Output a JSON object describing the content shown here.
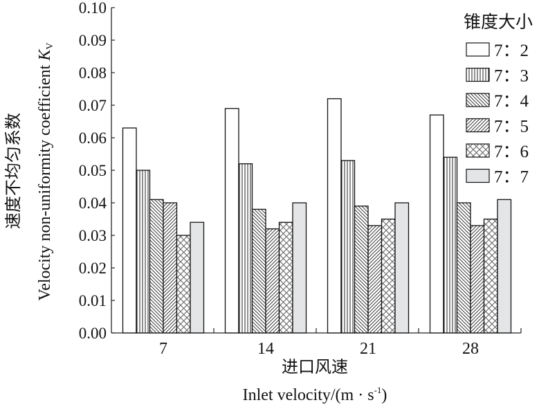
{
  "chart_data": {
    "type": "bar",
    "title": "",
    "xlabel_cn": "进口风速",
    "xlabel_en": "Inlet velocity/(m · s",
    "xlabel_en_sup": "-1",
    "xlabel_en_end": ")",
    "ylabel_cn": "速度不均匀系数",
    "ylabel_en": "Velocity non-uniformity coefficient ",
    "ylabel_symbol": "K",
    "ylabel_sub": "V",
    "ylim": [
      0,
      0.1
    ],
    "yticks": [
      "0.00",
      "0.01",
      "0.02",
      "0.03",
      "0.04",
      "0.05",
      "0.06",
      "0.07",
      "0.08",
      "0.09",
      "0.10"
    ],
    "categories": [
      "7",
      "14",
      "21",
      "28"
    ],
    "legend_title": "锥度大小",
    "legend_position": "top-right",
    "series": [
      {
        "name": "7：2",
        "pattern": "blank",
        "values": [
          0.063,
          0.069,
          0.072,
          0.067
        ]
      },
      {
        "name": "7：3",
        "pattern": "vertical",
        "values": [
          0.05,
          0.052,
          0.053,
          0.054
        ]
      },
      {
        "name": "7：4",
        "pattern": "backslash",
        "values": [
          0.041,
          0.038,
          0.039,
          0.04
        ]
      },
      {
        "name": "7：5",
        "pattern": "slash",
        "values": [
          0.04,
          0.032,
          0.033,
          0.033
        ]
      },
      {
        "name": "7：6",
        "pattern": "cross",
        "values": [
          0.03,
          0.034,
          0.035,
          0.035
        ]
      },
      {
        "name": "7：7",
        "pattern": "gray",
        "values": [
          0.034,
          0.04,
          0.04,
          0.041
        ]
      }
    ]
  }
}
